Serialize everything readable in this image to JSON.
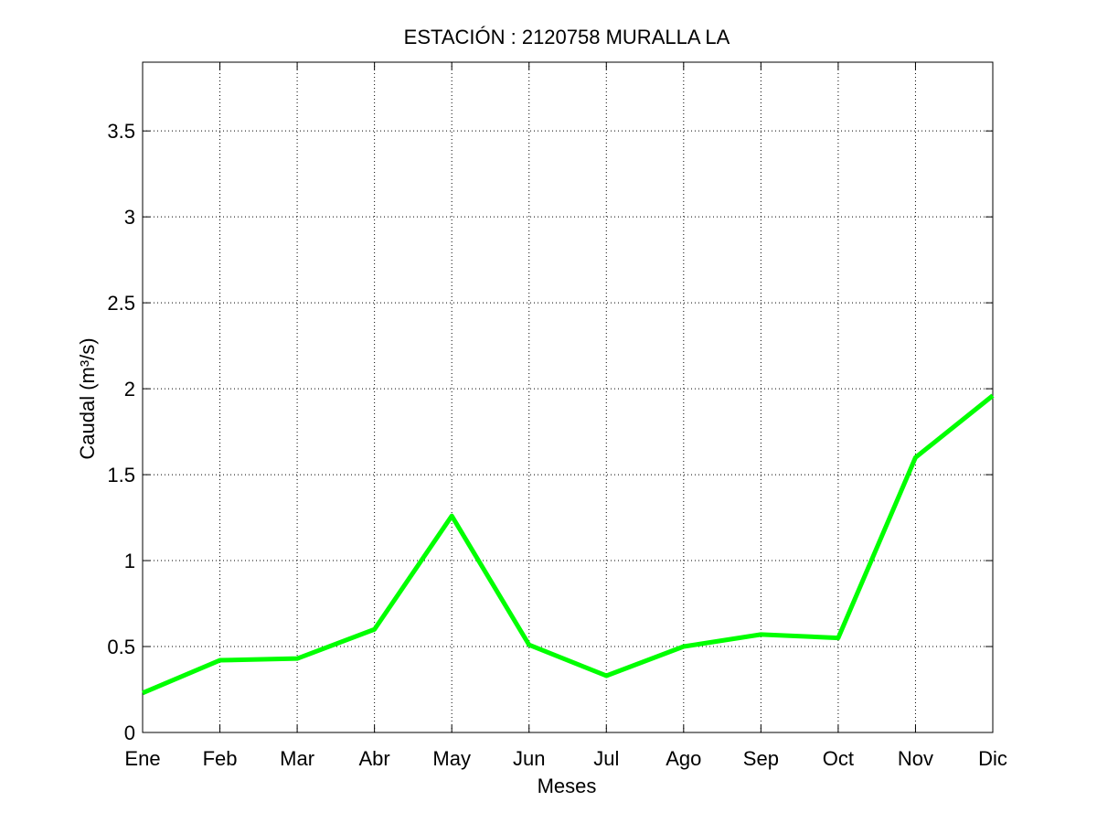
{
  "chart_data": {
    "type": "line",
    "title": "ESTACIÓN :  2120758  MURALLA LA",
    "xlabel": "Meses",
    "ylabel": "Caudal (m³/s)",
    "categories": [
      "Ene",
      "Feb",
      "Mar",
      "Abr",
      "May",
      "Jun",
      "Jul",
      "Ago",
      "Sep",
      "Oct",
      "Nov",
      "Dic"
    ],
    "series": [
      {
        "values": [
          0.23,
          0.42,
          0.43,
          0.6,
          1.26,
          0.51,
          0.33,
          0.5,
          0.57,
          0.55,
          1.6,
          1.96
        ]
      }
    ],
    "ylim": [
      0,
      3.9
    ],
    "yticks": [
      0,
      0.5,
      1,
      1.5,
      2,
      2.5,
      3,
      3.5
    ],
    "ytick_labels": [
      "0",
      "0.5",
      "1",
      "1.5",
      "2",
      "2.5",
      "3",
      "3.5"
    ],
    "grid": true,
    "colors": {
      "line": "#00ff00",
      "grid": "#000000",
      "axis": "#000000",
      "background": "#ffffff"
    }
  }
}
